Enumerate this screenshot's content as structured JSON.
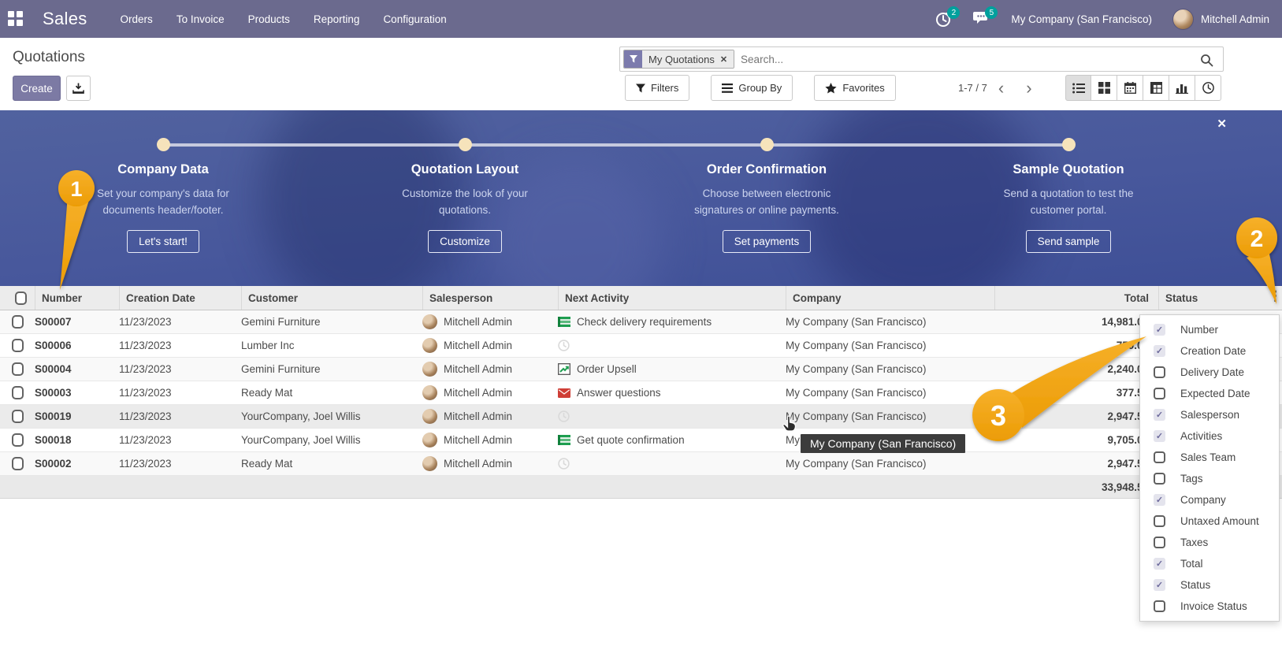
{
  "navbar": {
    "app_title": "Sales",
    "menus": [
      "Orders",
      "To Invoice",
      "Products",
      "Reporting",
      "Configuration"
    ],
    "activity_count": "2",
    "message_count": "5",
    "company": "My Company (San Francisco)",
    "user": "Mitchell Admin"
  },
  "control_panel": {
    "title": "Quotations",
    "create_label": "Create",
    "facet_label": "My Quotations",
    "facet_remove": "✕",
    "search_placeholder": "Search...",
    "filters_label": "Filters",
    "group_by_label": "Group By",
    "favorites_label": "Favorites",
    "pager": "1-7 / 7",
    "views": [
      "list",
      "kanban",
      "calendar",
      "pivot",
      "graph",
      "activity"
    ]
  },
  "onboarding": {
    "close_icon": "✕",
    "steps": [
      {
        "title": "Company Data",
        "desc": "Set your company's data for documents header/footer.",
        "button": "Let's start!"
      },
      {
        "title": "Quotation Layout",
        "desc": "Customize the look of your quotations.",
        "button": "Customize"
      },
      {
        "title": "Order Confirmation",
        "desc": "Choose between electronic signatures or online payments.",
        "button": "Set payments"
      },
      {
        "title": "Sample Quotation",
        "desc": "Send a quotation to test the customer portal.",
        "button": "Send sample"
      }
    ]
  },
  "list": {
    "headers": [
      "Number",
      "Creation Date",
      "Customer",
      "Salesperson",
      "Next Activity",
      "Company",
      "Total",
      "Status"
    ],
    "rows": [
      {
        "number": "S00007",
        "date": "11/23/2023",
        "customer": "Gemini Furniture",
        "salesperson": "Mitchell Admin",
        "activity_icon": "todo-bars",
        "activity_label": "Check delivery requirements",
        "company": "My Company (San Francisco)",
        "total": "14,981.00"
      },
      {
        "number": "S00006",
        "date": "11/23/2023",
        "customer": "Lumber Inc",
        "salesperson": "Mitchell Admin",
        "activity_icon": "clock",
        "activity_label": "",
        "company": "My Company (San Francisco)",
        "total": "750.00"
      },
      {
        "number": "S00004",
        "date": "11/23/2023",
        "customer": "Gemini Furniture",
        "salesperson": "Mitchell Admin",
        "activity_icon": "chart",
        "activity_label": "Order Upsell",
        "company": "My Company (San Francisco)",
        "total": "2,240.00"
      },
      {
        "number": "S00003",
        "date": "11/23/2023",
        "customer": "Ready Mat",
        "salesperson": "Mitchell Admin",
        "activity_icon": "envelope",
        "activity_label": "Answer questions",
        "company": "My Company (San Francisco)",
        "total": "377.50"
      },
      {
        "number": "S00019",
        "date": "11/23/2023",
        "customer": "YourCompany, Joel Willis",
        "salesperson": "Mitchell Admin",
        "activity_icon": "clock",
        "activity_label": "",
        "company": "My Company (San Francisco)",
        "total": "2,947.50"
      },
      {
        "number": "S00018",
        "date": "11/23/2023",
        "customer": "YourCompany, Joel Willis",
        "salesperson": "Mitchell Admin",
        "activity_icon": "todo-bars",
        "activity_label": "Get quote confirmation",
        "company": "My Company (San Francisco)",
        "total": "9,705.00"
      },
      {
        "number": "S00002",
        "date": "11/23/2023",
        "customer": "Ready Mat",
        "salesperson": "Mitchell Admin",
        "activity_icon": "clock",
        "activity_label": "",
        "company": "My Company (San Francisco)",
        "total": "2,947.50"
      }
    ],
    "footer_total": "33,948.50"
  },
  "columns_dropdown": {
    "items": [
      {
        "label": "Number",
        "checked": true
      },
      {
        "label": "Creation Date",
        "checked": true
      },
      {
        "label": "Delivery Date",
        "checked": false
      },
      {
        "label": "Expected Date",
        "checked": false
      },
      {
        "label": "Salesperson",
        "checked": true
      },
      {
        "label": "Activities",
        "checked": true
      },
      {
        "label": "Sales Team",
        "checked": false
      },
      {
        "label": "Tags",
        "checked": false
      },
      {
        "label": "Company",
        "checked": true
      },
      {
        "label": "Untaxed Amount",
        "checked": false
      },
      {
        "label": "Taxes",
        "checked": false
      },
      {
        "label": "Total",
        "checked": true
      },
      {
        "label": "Status",
        "checked": true
      },
      {
        "label": "Invoice Status",
        "checked": false
      }
    ]
  },
  "tooltip": {
    "text": "My Company (San Francisco)"
  },
  "annotations": {
    "badges": [
      "1",
      "2",
      "3"
    ]
  },
  "colors": {
    "navbar": "#6b6a8e",
    "badge_teal": "#00a09d",
    "primary_button": "#7c7aa4",
    "facet_purple": "#7c7bad",
    "banner_top": "#51629f",
    "banner_bottom": "#3e4f96",
    "annotation_orange": "#f2a60d",
    "activity_green": "#1e9e50",
    "activity_red": "#cf3e36"
  }
}
